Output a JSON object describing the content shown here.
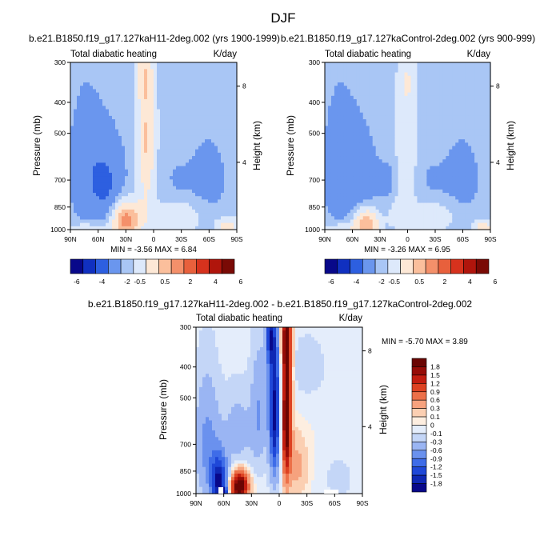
{
  "figure_title": "DJF",
  "colors": {
    "scale13": [
      "#08088a",
      "#1030c0",
      "#2d5fe0",
      "#6a96ee",
      "#a9c6f5",
      "#dde9fb",
      "#fde8d6",
      "#fbbf9c",
      "#f4906a",
      "#e8603c",
      "#d6321d",
      "#b0150c",
      "#7a0a05"
    ],
    "scale16": [
      "#08088a",
      "#0f28b4",
      "#1f48d8",
      "#3e6ce8",
      "#6a91ee",
      "#9ab5f3",
      "#c4d6f7",
      "#e4edfb",
      "#fdeee0",
      "#fbcfb2",
      "#f6a27e",
      "#ec7049",
      "#dd4222",
      "#c21d10",
      "#960c07",
      "#6a0503"
    ]
  },
  "chart_data": [
    {
      "type": "heatmap",
      "panel": "top-left",
      "title": "b.e21.B1850.f19_g17.127kaH11-2deg.002 (yrs 1900-1999)",
      "left_label": "Total diabatic heating",
      "right_label": "K/day",
      "ylabel": "Pressure (mb)",
      "y2label": "Height (km)",
      "x_ticks": [
        "90N",
        "60N",
        "30N",
        "0",
        "30S",
        "60S",
        "90S"
      ],
      "y_ticks": [
        "300",
        "400",
        "500",
        "700",
        "850",
        "1000"
      ],
      "y2_ticks": [
        "8",
        "4"
      ],
      "ylim": [
        1000,
        300
      ],
      "stats": "MIN = -3.56   MAX =  6.84",
      "field": [
        {
          "lat": 30,
          "p": 940,
          "rx": 13,
          "rp": 110,
          "amp": 6.8
        },
        {
          "lat": 70,
          "p": 990,
          "rx": 22,
          "rp": 45,
          "amp": 1.5
        },
        {
          "lat": 8,
          "p": 520,
          "rx": 9,
          "rp": 260,
          "amp": 4.2
        },
        {
          "lat": 10,
          "p": 330,
          "rx": 8,
          "rp": 60,
          "amp": 2.0
        },
        {
          "lat": 15,
          "p": 900,
          "rx": 14,
          "rp": 120,
          "amp": 1.6
        },
        {
          "lat": -30,
          "p": 910,
          "rx": 25,
          "rp": 110,
          "amp": 1.7
        },
        {
          "lat": -80,
          "p": 980,
          "rx": 12,
          "rp": 60,
          "amp": 3.0
        },
        {
          "lat": -30,
          "p": 450,
          "rx": 20,
          "rp": 160,
          "amp": 0.4
        },
        {
          "lat": -55,
          "p": 700,
          "rx": 28,
          "rp": 250,
          "amp": -0.9
        },
        {
          "lat": 55,
          "p": 700,
          "rx": 25,
          "rp": 250,
          "amp": -1.5
        },
        {
          "lat": 52,
          "p": 720,
          "rx": 12,
          "rp": 120,
          "amp": -1.0
        },
        {
          "lat": 75,
          "p": 620,
          "rx": 18,
          "rp": 320,
          "amp": -0.8
        },
        {
          "lat": -25,
          "p": 700,
          "rx": 12,
          "rp": 90,
          "amp": -0.5
        }
      ]
    },
    {
      "type": "heatmap",
      "panel": "top-right",
      "title": "b.e21.B1850.f19_g17.127kaControl-2deg.002 (yrs 900-999)",
      "left_label": "Total diabatic heating",
      "right_label": "K/day",
      "ylabel": "Pressure (mb)",
      "y2label": "Height (km)",
      "x_ticks": [
        "90N",
        "60N",
        "30N",
        "0",
        "30S",
        "60S",
        "90S"
      ],
      "y_ticks": [
        "300",
        "400",
        "500",
        "700",
        "850",
        "1000"
      ],
      "y2_ticks": [
        "8",
        "4"
      ],
      "ylim": [
        1000,
        300
      ],
      "stats": "MIN = -3.26   MAX =  6.95",
      "field": [
        {
          "lat": 45,
          "p": 960,
          "rx": 13,
          "rp": 95,
          "amp": 6.0
        },
        {
          "lat": 70,
          "p": 990,
          "rx": 22,
          "rp": 45,
          "amp": 1.5
        },
        {
          "lat": 2,
          "p": 560,
          "rx": 10,
          "rp": 260,
          "amp": 1.9
        },
        {
          "lat": 0,
          "p": 340,
          "rx": 9,
          "rp": 60,
          "amp": 1.3
        },
        {
          "lat": 10,
          "p": 880,
          "rx": 12,
          "rp": 120,
          "amp": 1.2
        },
        {
          "lat": -30,
          "p": 910,
          "rx": 25,
          "rp": 110,
          "amp": 1.5
        },
        {
          "lat": -82,
          "p": 985,
          "rx": 10,
          "rp": 50,
          "amp": 3.5
        },
        {
          "lat": -30,
          "p": 450,
          "rx": 20,
          "rp": 160,
          "amp": 0.4
        },
        {
          "lat": -55,
          "p": 700,
          "rx": 28,
          "rp": 250,
          "amp": -0.9
        },
        {
          "lat": 57,
          "p": 700,
          "rx": 25,
          "rp": 250,
          "amp": -1.4
        },
        {
          "lat": 20,
          "p": 720,
          "rx": 10,
          "rp": 110,
          "amp": -0.9
        },
        {
          "lat": 75,
          "p": 620,
          "rx": 18,
          "rp": 320,
          "amp": -0.8
        },
        {
          "lat": -25,
          "p": 700,
          "rx": 12,
          "rp": 90,
          "amp": -0.5
        }
      ]
    },
    {
      "type": "heatmap",
      "panel": "bottom",
      "title": "b.e21.B1850.f19_g17.127kaH11-2deg.002 - b.e21.B1850.f19_g17.127kaControl-2deg.002",
      "left_label": "Total diabatic heating",
      "right_label": "K/day",
      "ylabel": "Pressure (mb)",
      "y2label": "Height (km)",
      "x_ticks": [
        "90N",
        "60N",
        "30N",
        "0",
        "30S",
        "60S",
        "90S"
      ],
      "y_ticks": [
        "300",
        "400",
        "500",
        "700",
        "850",
        "1000"
      ],
      "y2_ticks": [
        "8",
        "4"
      ],
      "ylim": [
        1000,
        300
      ],
      "stats": "MIN = -5.70   MAX =   3.89",
      "field": [
        {
          "lat": 5,
          "p": 560,
          "rx": 6,
          "rp": 300,
          "amp": -1.9
        },
        {
          "lat": 10,
          "p": 320,
          "rx": 5,
          "rp": 80,
          "amp": -1.2
        },
        {
          "lat": -8,
          "p": 560,
          "rx": 5,
          "rp": 300,
          "amp": 2.3
        },
        {
          "lat": -8,
          "p": 330,
          "rx": 5,
          "rp": 70,
          "amp": 1.2
        },
        {
          "lat": 43,
          "p": 950,
          "rx": 9,
          "rp": 95,
          "amp": 2.4
        },
        {
          "lat": 65,
          "p": 920,
          "rx": 9,
          "rp": 170,
          "amp": -1.8
        },
        {
          "lat": 60,
          "p": 985,
          "rx": 4,
          "rp": 25,
          "amp": -1.5
        },
        {
          "lat": 78,
          "p": 700,
          "rx": 14,
          "rp": 300,
          "amp": -0.7
        },
        {
          "lat": 45,
          "p": 640,
          "rx": 15,
          "rp": 180,
          "amp": -0.45
        },
        {
          "lat": 22,
          "p": 560,
          "rx": 9,
          "rp": 240,
          "amp": -0.6
        },
        {
          "lat": -20,
          "p": 820,
          "rx": 10,
          "rp": 160,
          "amp": 0.4
        },
        {
          "lat": -30,
          "p": 400,
          "rx": 30,
          "rp": 130,
          "amp": -0.15
        },
        {
          "lat": -65,
          "p": 900,
          "rx": 20,
          "rp": 180,
          "amp": -0.15
        }
      ]
    }
  ],
  "colorbars": {
    "top_left": {
      "labels": [
        "-6",
        "-4",
        "-2",
        "-0.5",
        "0.5",
        "2",
        "4",
        "6"
      ]
    },
    "top_right": {
      "labels": [
        "-6",
        "-4",
        "-2",
        "-0.5",
        "0.5",
        "2",
        "4",
        "6"
      ]
    },
    "bottom": {
      "labels": [
        "1.8",
        "1.5",
        "1.2",
        "0.9",
        "0.6",
        "0.3",
        "0.1",
        "0",
        "-0.1",
        "-0.3",
        "-0.6",
        "-0.9",
        "-1.2",
        "-1.5",
        "-1.8"
      ]
    }
  }
}
